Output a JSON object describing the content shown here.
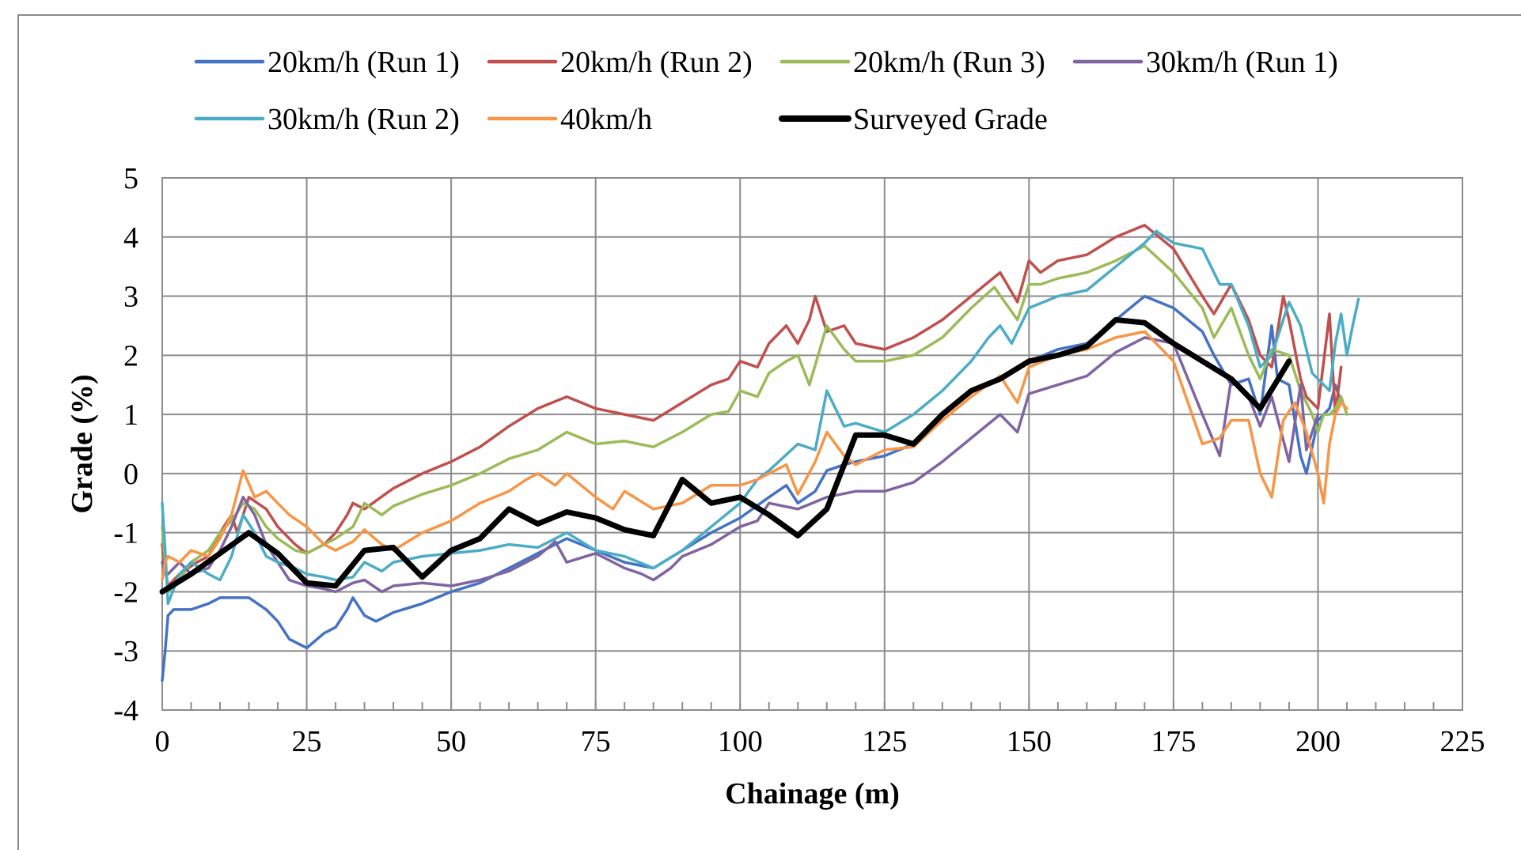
{
  "chart_data": {
    "type": "line",
    "xlabel": "Chainage (m)",
    "ylabel": "Grade (%)",
    "xlim": [
      0,
      225
    ],
    "ylim": [
      -4,
      5
    ],
    "x_ticks": [
      0,
      25,
      50,
      75,
      100,
      125,
      150,
      175,
      200,
      225
    ],
    "y_ticks": [
      -4,
      -3,
      -2,
      -1,
      0,
      1,
      2,
      3,
      4,
      5
    ],
    "grid": true,
    "legend_position": "top",
    "series": [
      {
        "name": "20km/h (Run 1)",
        "color": "#4472c4",
        "width": 3.5,
        "x": [
          0,
          0.5,
          1,
          2,
          5,
          8,
          10,
          13,
          15,
          18,
          20,
          22,
          25,
          28,
          30,
          32,
          33,
          35,
          37,
          40,
          45,
          50,
          55,
          60,
          65,
          70,
          75,
          80,
          85,
          90,
          95,
          100,
          105,
          108,
          110,
          113,
          115,
          118,
          120,
          125,
          130,
          135,
          140,
          145,
          150,
          155,
          160,
          165,
          170,
          175,
          180,
          182,
          185,
          188,
          190,
          192,
          193,
          195,
          197,
          198,
          200,
          202,
          203,
          204
        ],
        "y": [
          -3.5,
          -3.0,
          -2.4,
          -2.3,
          -2.3,
          -2.2,
          -2.1,
          -2.1,
          -2.1,
          -2.3,
          -2.5,
          -2.8,
          -2.95,
          -2.7,
          -2.6,
          -2.3,
          -2.1,
          -2.4,
          -2.5,
          -2.35,
          -2.2,
          -2.0,
          -1.85,
          -1.6,
          -1.35,
          -1.1,
          -1.3,
          -1.5,
          -1.6,
          -1.3,
          -1.0,
          -0.75,
          -0.4,
          -0.2,
          -0.5,
          -0.3,
          0.05,
          0.15,
          0.2,
          0.3,
          0.5,
          1.0,
          1.4,
          1.6,
          1.9,
          2.1,
          2.2,
          2.6,
          3.0,
          2.8,
          2.4,
          2.0,
          1.5,
          1.6,
          1.0,
          2.5,
          1.6,
          1.5,
          0.3,
          0.0,
          0.9,
          1.1,
          1.5,
          1.2
        ]
      },
      {
        "name": "20km/h (Run 2)",
        "color": "#c0504d",
        "width": 3.5,
        "x": [
          0,
          0.5,
          1,
          3,
          6,
          8,
          10,
          12,
          13,
          15,
          18,
          20,
          23,
          25,
          28,
          30,
          32,
          33,
          35,
          40,
          45,
          50,
          55,
          60,
          65,
          70,
          75,
          80,
          85,
          90,
          95,
          98,
          100,
          103,
          105,
          108,
          110,
          112,
          113,
          115,
          118,
          120,
          125,
          130,
          135,
          140,
          145,
          148,
          150,
          152,
          155,
          160,
          165,
          170,
          175,
          180,
          182,
          185,
          188,
          190,
          192,
          194,
          195,
          197,
          198,
          200,
          201,
          202,
          203,
          204
        ],
        "y": [
          -1.2,
          -1.6,
          -1.9,
          -1.7,
          -1.5,
          -1.4,
          -1.0,
          -0.7,
          -1.0,
          -0.4,
          -0.6,
          -0.9,
          -1.2,
          -1.35,
          -1.2,
          -1.0,
          -0.7,
          -0.5,
          -0.6,
          -0.25,
          0.0,
          0.2,
          0.45,
          0.8,
          1.1,
          1.3,
          1.1,
          1.0,
          0.9,
          1.2,
          1.5,
          1.6,
          1.9,
          1.8,
          2.2,
          2.5,
          2.2,
          2.6,
          3.0,
          2.4,
          2.5,
          2.2,
          2.1,
          2.3,
          2.6,
          3.0,
          3.4,
          2.9,
          3.6,
          3.4,
          3.6,
          3.7,
          4.0,
          4.2,
          3.8,
          3.0,
          2.7,
          3.2,
          2.6,
          2.0,
          1.8,
          3.0,
          2.6,
          1.6,
          1.3,
          1.1,
          1.9,
          2.7,
          1.0,
          1.8
        ]
      },
      {
        "name": "20km/h (Run 3)",
        "color": "#9bbb59",
        "width": 3.5,
        "x": [
          0,
          0.5,
          1,
          3,
          5,
          8,
          10,
          12,
          14,
          16,
          18,
          20,
          23,
          25,
          28,
          30,
          33,
          35,
          38,
          40,
          45,
          50,
          55,
          60,
          65,
          70,
          75,
          80,
          85,
          90,
          95,
          98,
          100,
          103,
          105,
          108,
          110,
          112,
          115,
          118,
          120,
          125,
          130,
          135,
          140,
          144,
          148,
          150,
          152,
          155,
          160,
          165,
          170,
          175,
          180,
          182,
          185,
          188,
          190,
          192,
          195,
          197,
          199,
          200,
          201,
          202,
          203,
          204,
          205
        ],
        "y": [
          -0.9,
          -1.5,
          -2.0,
          -1.8,
          -1.5,
          -1.3,
          -1.0,
          -0.8,
          -0.5,
          -0.6,
          -0.9,
          -1.1,
          -1.3,
          -1.35,
          -1.2,
          -1.1,
          -0.9,
          -0.5,
          -0.7,
          -0.55,
          -0.35,
          -0.2,
          0.0,
          0.25,
          0.4,
          0.7,
          0.5,
          0.55,
          0.45,
          0.7,
          1.0,
          1.05,
          1.4,
          1.3,
          1.7,
          1.9,
          2.0,
          1.5,
          2.5,
          2.1,
          1.9,
          1.9,
          2.0,
          2.3,
          2.8,
          3.15,
          2.6,
          3.2,
          3.2,
          3.3,
          3.4,
          3.6,
          3.85,
          3.4,
          2.8,
          2.3,
          2.8,
          2.0,
          1.6,
          2.1,
          2.0,
          1.4,
          1.0,
          0.7,
          1.0,
          1.0,
          1.1,
          1.3,
          1.0
        ]
      },
      {
        "name": "30km/h (Run 1)",
        "color": "#8064a2",
        "width": 3.5,
        "x": [
          0,
          0.5,
          1,
          3,
          5,
          8,
          10,
          12,
          14,
          16,
          18,
          20,
          22,
          25,
          28,
          30,
          33,
          35,
          38,
          40,
          45,
          50,
          55,
          60,
          65,
          68,
          70,
          75,
          80,
          83,
          85,
          88,
          90,
          95,
          100,
          103,
          105,
          110,
          115,
          120,
          125,
          130,
          135,
          140,
          145,
          148,
          150,
          155,
          160,
          165,
          170,
          175,
          180,
          183,
          185,
          188,
          190,
          192,
          195,
          197,
          198,
          200
        ],
        "y": [
          -1.5,
          -1.7,
          -1.7,
          -1.5,
          -1.7,
          -1.6,
          -1.3,
          -0.9,
          -0.4,
          -0.7,
          -1.2,
          -1.5,
          -1.8,
          -1.9,
          -1.95,
          -2.0,
          -1.85,
          -1.8,
          -2.0,
          -1.9,
          -1.85,
          -1.9,
          -1.8,
          -1.65,
          -1.4,
          -1.15,
          -1.5,
          -1.35,
          -1.6,
          -1.7,
          -1.8,
          -1.6,
          -1.4,
          -1.2,
          -0.9,
          -0.8,
          -0.5,
          -0.6,
          -0.4,
          -0.3,
          -0.3,
          -0.15,
          0.2,
          0.6,
          1.0,
          0.7,
          1.35,
          1.5,
          1.65,
          2.05,
          2.3,
          2.2,
          1.0,
          0.3,
          1.6,
          1.3,
          0.8,
          1.3,
          0.2,
          1.5,
          0.4,
          1.0
        ]
      },
      {
        "name": "30km/h (Run 2)",
        "color": "#4bacc6",
        "width": 3.5,
        "x": [
          0,
          0.5,
          1,
          3,
          5,
          8,
          10,
          12,
          14,
          16,
          18,
          20,
          23,
          25,
          28,
          30,
          33,
          35,
          38,
          40,
          45,
          50,
          55,
          60,
          65,
          70,
          75,
          80,
          85,
          90,
          95,
          100,
          103,
          105,
          110,
          113,
          115,
          118,
          120,
          125,
          130,
          135,
          140,
          143,
          145,
          147,
          150,
          155,
          160,
          165,
          170,
          172,
          175,
          180,
          183,
          185,
          188,
          190,
          192,
          195,
          197,
          199,
          200,
          201,
          202,
          203,
          204,
          205,
          206,
          207
        ],
        "y": [
          -0.5,
          -1.3,
          -2.2,
          -1.7,
          -1.5,
          -1.7,
          -1.8,
          -1.4,
          -0.7,
          -1.0,
          -1.4,
          -1.5,
          -1.6,
          -1.7,
          -1.75,
          -1.8,
          -1.75,
          -1.5,
          -1.65,
          -1.5,
          -1.4,
          -1.35,
          -1.3,
          -1.2,
          -1.25,
          -1.0,
          -1.3,
          -1.4,
          -1.6,
          -1.3,
          -0.9,
          -0.5,
          -0.1,
          0.05,
          0.5,
          0.4,
          1.4,
          0.8,
          0.85,
          0.7,
          1.0,
          1.4,
          1.9,
          2.3,
          2.5,
          2.2,
          2.8,
          3.0,
          3.1,
          3.5,
          3.9,
          4.1,
          3.9,
          3.8,
          3.2,
          3.2,
          2.5,
          1.8,
          2.0,
          2.9,
          2.5,
          1.7,
          1.6,
          1.5,
          1.4,
          2.2,
          2.7,
          2.0,
          2.5,
          2.95
        ]
      },
      {
        "name": "40km/h",
        "color": "#f79646",
        "width": 3.5,
        "x": [
          0,
          0.5,
          1,
          3,
          5,
          8,
          10,
          12,
          14,
          16,
          18,
          20,
          22,
          25,
          28,
          30,
          33,
          35,
          38,
          40,
          45,
          50,
          55,
          60,
          63,
          65,
          68,
          70,
          75,
          78,
          80,
          85,
          90,
          95,
          100,
          103,
          105,
          108,
          110,
          113,
          115,
          118,
          120,
          125,
          130,
          135,
          140,
          145,
          148,
          150,
          155,
          160,
          165,
          170,
          175,
          180,
          183,
          185,
          188,
          190,
          192,
          194,
          196,
          198,
          200,
          201,
          202,
          203,
          204,
          205
        ],
        "y": [
          -1.8,
          -1.5,
          -1.4,
          -1.5,
          -1.3,
          -1.4,
          -1.1,
          -0.7,
          0.05,
          -0.4,
          -0.3,
          -0.5,
          -0.7,
          -0.9,
          -1.2,
          -1.3,
          -1.15,
          -0.95,
          -1.2,
          -1.3,
          -1.0,
          -0.8,
          -0.5,
          -0.3,
          -0.1,
          0.0,
          -0.2,
          0.0,
          -0.4,
          -0.6,
          -0.3,
          -0.6,
          -0.5,
          -0.2,
          -0.2,
          -0.1,
          0.0,
          0.15,
          -0.35,
          0.2,
          0.7,
          0.3,
          0.15,
          0.4,
          0.45,
          0.9,
          1.3,
          1.65,
          1.2,
          1.8,
          2.0,
          2.1,
          2.3,
          2.4,
          1.9,
          0.5,
          0.6,
          0.9,
          0.9,
          0.0,
          -0.4,
          0.9,
          1.2,
          0.7,
          0.0,
          -0.5,
          0.5,
          1.0,
          1.2,
          1.1
        ]
      },
      {
        "name": "Surveyed Grade",
        "color": "#000000",
        "width": 7,
        "x": [
          0,
          5,
          10,
          15,
          20,
          25,
          30,
          35,
          40,
          45,
          50,
          55,
          60,
          65,
          70,
          75,
          80,
          85,
          90,
          95,
          100,
          105,
          110,
          115,
          120,
          125,
          130,
          135,
          140,
          145,
          150,
          155,
          160,
          165,
          170,
          175,
          180,
          185,
          190,
          195
        ],
        "y": [
          -2.0,
          -1.7,
          -1.35,
          -1.0,
          -1.35,
          -1.85,
          -1.9,
          -1.3,
          -1.25,
          -1.75,
          -1.3,
          -1.1,
          -0.6,
          -0.85,
          -0.65,
          -0.75,
          -0.95,
          -1.05,
          -0.1,
          -0.5,
          -0.4,
          -0.7,
          -1.05,
          -0.6,
          0.65,
          0.65,
          0.5,
          1.0,
          1.4,
          1.6,
          1.9,
          2.0,
          2.15,
          2.6,
          2.55,
          2.2,
          1.9,
          1.6,
          1.1,
          1.9
        ]
      }
    ]
  }
}
